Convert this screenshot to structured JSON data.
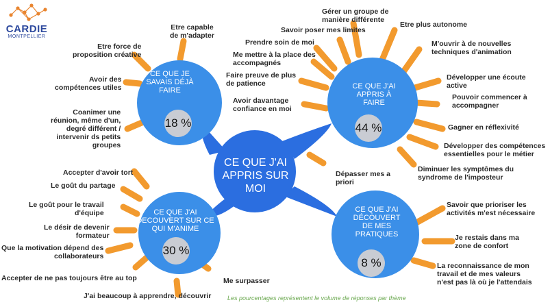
{
  "logo": {
    "name": "CARDIE",
    "subtitle": "MONTPELLIER"
  },
  "colors": {
    "bubble": "#3b8fe8",
    "center": "#2b6ee0",
    "ray": "#f29a2e",
    "percent_disk": "#c9ccd3",
    "footnote": "#6aa84f",
    "logo": "#2e4a9e",
    "logo_accent": "#e9852f"
  },
  "center": {
    "title_lines": [
      "CE QUE J'AI",
      "APPRIS SUR",
      "MOI"
    ]
  },
  "bubbles": [
    {
      "id": "savais",
      "title_lines": [
        "CE QUE JE",
        "SAVAIS DÉJÀ",
        "FAIRE"
      ],
      "percent": 18,
      "percent_label": "18 %"
    },
    {
      "id": "appris",
      "title_lines": [
        "CE QUE J'AI",
        "APPRIS À",
        "FAIRE"
      ],
      "percent": 44,
      "percent_label": "44 %"
    },
    {
      "id": "anime",
      "title_lines": [
        "CE QUE J'AI",
        "DECOUVERT SUR CE",
        "QUI M'ANIME"
      ],
      "percent": 30,
      "percent_label": "30 %"
    },
    {
      "id": "pratiques",
      "title_lines": [
        "CE QUE J'AI",
        "DÉCOUVERT",
        "DE MES",
        "PRATIQUES"
      ],
      "percent": 8,
      "percent_label": "8 %"
    }
  ],
  "labels": {
    "savais": [
      [
        "Etre capable",
        "de m'adapter"
      ],
      [
        "Etre force de",
        "proposition créative"
      ],
      [
        "Avoir des",
        "compétences utiles"
      ],
      [
        "Coanimer une",
        "réunion, même d'un,",
        "degré différent /",
        "intervenir ds petits",
        "groupes"
      ]
    ],
    "appris": [
      [
        "Gérer un groupe de",
        "manière différente"
      ],
      [
        "Savoir poser mes limites"
      ],
      [
        "Etre plus autonome"
      ],
      [
        "Prendre soin de moi"
      ],
      [
        "M'ouvrir à de nouvelles",
        "techniques d'animation"
      ],
      [
        "Me mettre à la place des",
        "accompagnés"
      ],
      [
        "Faire preuve de plus",
        "de patience"
      ],
      [
        "Développer une écoute",
        "active"
      ],
      [
        "Pouvoir commencer à",
        "accompagner"
      ],
      [
        "Avoir davantage",
        "confiance en moi"
      ],
      [
        "Gagner en réflexivité"
      ],
      [
        "Développer des compétences",
        "essentielles pour le métier"
      ],
      [
        "Diminuer les symptômes du",
        "syndrome de l'imposteur"
      ]
    ],
    "moi": [
      [
        "Dépasser mes a",
        "priori"
      ]
    ],
    "anime": [
      [
        "Accepter d'avoir tort"
      ],
      [
        "Le goût du partage"
      ],
      [
        "Le goût pour le travail",
        "d'équipe"
      ],
      [
        "Le désir de devenir",
        "formateur"
      ],
      [
        "Que la motivation dépend des",
        "collaborateurs"
      ],
      [
        "Accepter de ne pas toujours être au top"
      ],
      [
        "Me surpasser"
      ],
      [
        "J'ai beaucoup à apprendre, découvrir"
      ]
    ],
    "pratiques": [
      [
        "Savoir que prioriser les",
        "activités m'est nécessaire"
      ],
      [
        "Je restais dans ma",
        "zone de confort"
      ],
      [
        "La reconnaissance de mon",
        "travail et de mes valeurs",
        "n'est pas là où je l'attendais"
      ]
    ]
  },
  "footnote": "Les pourcentages représentent le volume de réponses par thème"
}
